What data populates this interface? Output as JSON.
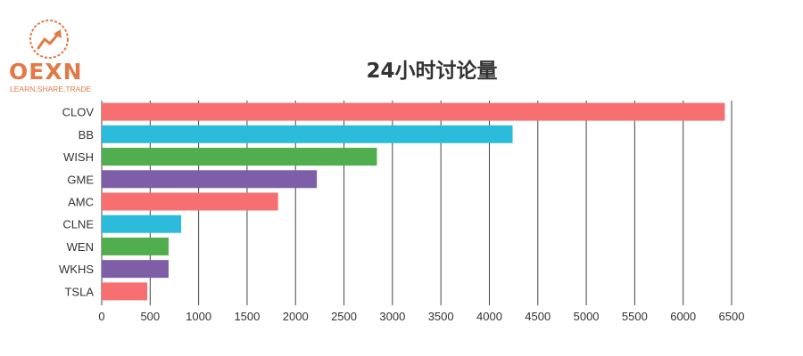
{
  "logo": {
    "icon": "rising-arrow-circle-icon",
    "text": "OEXN",
    "tagline": "LEARN,SHARE,TRADE",
    "color": "#e07a48"
  },
  "chart_data": {
    "type": "bar",
    "orientation": "horizontal",
    "title": "24小时讨论量",
    "xlabel": "",
    "ylabel": "",
    "categories": [
      "CLOV",
      "BB",
      "WISH",
      "GME",
      "AMC",
      "CLNE",
      "WEN",
      "WKHS",
      "TSLA"
    ],
    "values": [
      6430,
      4240,
      2840,
      2220,
      1820,
      820,
      690,
      690,
      470
    ],
    "colors": [
      "#f76f71",
      "#2bbcdc",
      "#51ae4e",
      "#7e5ea7",
      "#f76f71",
      "#2bbcdc",
      "#51ae4e",
      "#7e5ea7",
      "#f76f71"
    ],
    "xlim": [
      0,
      6500
    ],
    "xticks": [
      0,
      500,
      1000,
      1500,
      2000,
      2500,
      3000,
      3500,
      4000,
      4500,
      5000,
      5500,
      6000,
      6500
    ],
    "grid": "vertical",
    "legend": "none"
  }
}
